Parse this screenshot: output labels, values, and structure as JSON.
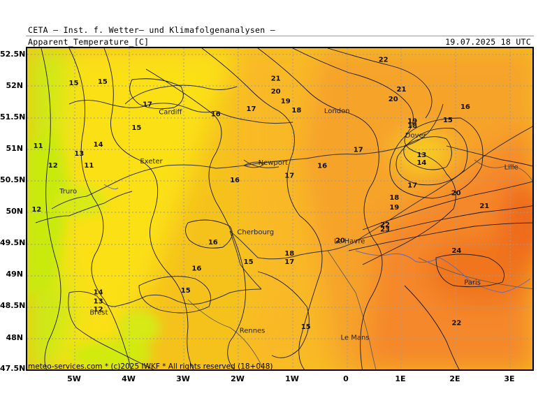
{
  "header": {
    "org": "CETA — Inst. f. Wetter— und Klimafolgenanalysen —",
    "variable": "Apparent_Temperature_[C]",
    "valid_time": "19.07.2025 18 UTC"
  },
  "footer": "meteo-services.com * (c)2025 IWKF * All rights reserved (18+048)",
  "lat_labels": [
    "52.5N",
    "52N",
    "51.5N",
    "51N",
    "50.5N",
    "50N",
    "49.5N",
    "49N",
    "48.5N",
    "48N",
    "47.5N"
  ],
  "lon_labels": [
    "5W",
    "4W",
    "3W",
    "2W",
    "1W",
    "0",
    "1E",
    "2E",
    "3E"
  ],
  "map": {
    "type": "heatmap",
    "variable": "Apparent_Temperature_[C]",
    "lat_range": [
      47.5,
      52.5
    ],
    "lon_range": [
      -5.8,
      3.5
    ],
    "grid": true,
    "contour_labels": [
      {
        "v": "15",
        "lon": -4.95,
        "lat": 51.93
      },
      {
        "v": "15",
        "lon": -4.42,
        "lat": 51.95
      },
      {
        "v": "17",
        "lon": -3.6,
        "lat": 51.6
      },
      {
        "v": "16",
        "lon": -2.35,
        "lat": 51.45
      },
      {
        "v": "17",
        "lon": -1.7,
        "lat": 51.53
      },
      {
        "v": "21",
        "lon": -1.25,
        "lat": 52.0
      },
      {
        "v": "20",
        "lon": -1.25,
        "lat": 51.8
      },
      {
        "v": "19",
        "lon": -1.07,
        "lat": 51.65
      },
      {
        "v": "18",
        "lon": -0.87,
        "lat": 51.51
      },
      {
        "v": "22",
        "lon": 0.72,
        "lat": 52.29
      },
      {
        "v": "21",
        "lon": 1.05,
        "lat": 51.83
      },
      {
        "v": "20",
        "lon": 0.9,
        "lat": 51.68
      },
      {
        "v": "16",
        "lon": 2.22,
        "lat": 51.56
      },
      {
        "v": "15",
        "lon": 1.9,
        "lat": 51.36
      },
      {
        "v": "19",
        "lon": 1.25,
        "lat": 51.34
      },
      {
        "v": "18",
        "lon": 1.25,
        "lat": 51.27
      },
      {
        "v": "15",
        "lon": -3.8,
        "lat": 51.24
      },
      {
        "v": "14",
        "lon": -4.5,
        "lat": 50.98
      },
      {
        "v": "13",
        "lon": -4.85,
        "lat": 50.84
      },
      {
        "v": "12",
        "lon": -5.33,
        "lat": 50.66
      },
      {
        "v": "11",
        "lon": -4.67,
        "lat": 50.66
      },
      {
        "v": "11",
        "lon": -5.6,
        "lat": 50.96
      },
      {
        "v": "12",
        "lon": -5.63,
        "lat": 49.98
      },
      {
        "v": "16",
        "lon": -2.0,
        "lat": 50.43
      },
      {
        "v": "17",
        "lon": -1.0,
        "lat": 50.5
      },
      {
        "v": "16",
        "lon": -0.4,
        "lat": 50.65
      },
      {
        "v": "17",
        "lon": 0.26,
        "lat": 50.9
      },
      {
        "v": "13",
        "lon": 1.42,
        "lat": 50.82
      },
      {
        "v": "14",
        "lon": 1.42,
        "lat": 50.7
      },
      {
        "v": "17",
        "lon": 1.25,
        "lat": 50.35
      },
      {
        "v": "20",
        "lon": 2.05,
        "lat": 50.23
      },
      {
        "v": "21",
        "lon": 2.57,
        "lat": 50.03
      },
      {
        "v": "18",
        "lon": 0.92,
        "lat": 50.16
      },
      {
        "v": "19",
        "lon": 0.92,
        "lat": 50.01
      },
      {
        "v": "22",
        "lon": 0.75,
        "lat": 49.74
      },
      {
        "v": "23",
        "lon": 0.75,
        "lat": 49.67
      },
      {
        "v": "20",
        "lon": -0.07,
        "lat": 49.5
      },
      {
        "v": "16",
        "lon": -2.4,
        "lat": 49.47
      },
      {
        "v": "16",
        "lon": -2.7,
        "lat": 49.07
      },
      {
        "v": "15",
        "lon": -1.75,
        "lat": 49.17
      },
      {
        "v": "18",
        "lon": -1.0,
        "lat": 49.3
      },
      {
        "v": "17",
        "lon": -1.0,
        "lat": 49.17
      },
      {
        "v": "24",
        "lon": 2.06,
        "lat": 49.34
      },
      {
        "v": "14",
        "lon": -4.5,
        "lat": 48.7
      },
      {
        "v": "13",
        "lon": -4.5,
        "lat": 48.56
      },
      {
        "v": "12",
        "lon": -4.5,
        "lat": 48.44
      },
      {
        "v": "15",
        "lon": -2.9,
        "lat": 48.73
      },
      {
        "v": "15",
        "lon": -0.7,
        "lat": 48.17
      },
      {
        "v": "22",
        "lon": 2.06,
        "lat": 48.23
      }
    ],
    "cities": [
      {
        "name": "Cardiff",
        "lon": -3.18,
        "lat": 51.48
      },
      {
        "name": "London",
        "lon": -0.13,
        "lat": 51.5
      },
      {
        "name": "Dover",
        "lon": 1.31,
        "lat": 51.12
      },
      {
        "name": "Exeter",
        "lon": -3.53,
        "lat": 50.72
      },
      {
        "name": "Newport",
        "lon": -1.3,
        "lat": 50.7
      },
      {
        "name": "Truro",
        "lon": -5.05,
        "lat": 50.26
      },
      {
        "name": "Lille",
        "lon": 3.06,
        "lat": 50.63
      },
      {
        "name": "Le Havre",
        "lon": 0.1,
        "lat": 49.49
      },
      {
        "name": "Cherbourg",
        "lon": -1.62,
        "lat": 49.63
      },
      {
        "name": "Paris",
        "lon": 2.35,
        "lat": 48.85
      },
      {
        "name": "Brest",
        "lon": -4.49,
        "lat": 48.39
      },
      {
        "name": "Rennes",
        "lon": -1.68,
        "lat": 48.11
      },
      {
        "name": "Le Mans",
        "lon": 0.2,
        "lat": 48.0
      }
    ]
  }
}
